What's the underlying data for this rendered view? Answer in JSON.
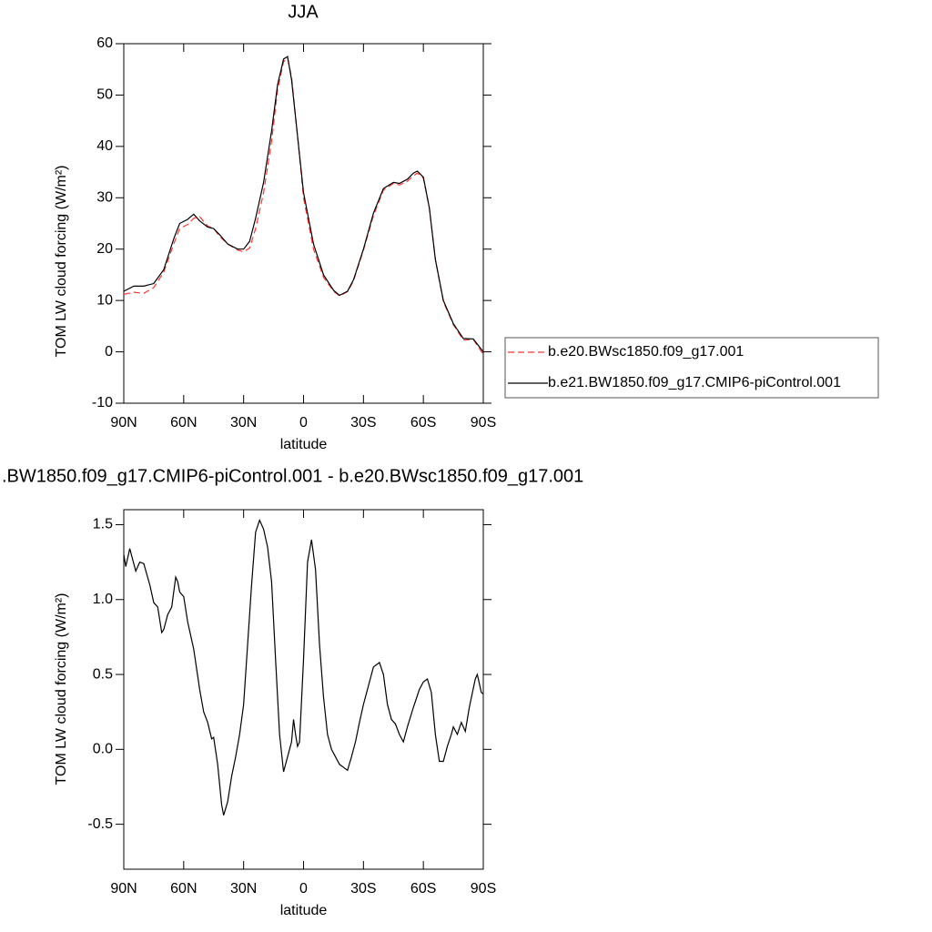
{
  "chart_data": [
    {
      "type": "line",
      "title": "JJA",
      "xlabel": "latitude",
      "ylabel": "TOM LW cloud forcing (W/m²)",
      "x": [
        90,
        85,
        80,
        75,
        70,
        65,
        62,
        58,
        55,
        52,
        48,
        45,
        42,
        38,
        33,
        30,
        27,
        24,
        20,
        16,
        13,
        10,
        8,
        6,
        3,
        0,
        -5,
        -10,
        -15,
        -18,
        -22,
        -25,
        -30,
        -35,
        -40,
        -45,
        -48,
        -52,
        -55,
        -57,
        -60,
        -63,
        -66,
        -70,
        -75,
        -80,
        -85,
        -90
      ],
      "series": [
        {
          "name": "b.e20.BWsc1850.f09_g17.001",
          "color": "#ff3333",
          "dashed": true,
          "values": [
            11.2,
            11.6,
            11.4,
            12.5,
            15.5,
            21,
            24,
            24.8,
            26,
            26.3,
            24.5,
            24,
            22.5,
            21,
            19.8,
            19.5,
            20.2,
            24,
            31,
            41,
            51,
            56.5,
            57.2,
            53.5,
            42,
            30,
            20,
            14.5,
            11.8,
            10.9,
            11.7,
            13.8,
            19.8,
            26.5,
            31.5,
            32.8,
            32.5,
            33.2,
            34.3,
            34.8,
            33.8,
            28,
            18,
            9.8,
            5.3,
            2.3,
            2.4,
            -0.5
          ]
        },
        {
          "name": "b.e21.BW1850.f09_g17.CMIP6-piControl.001",
          "color": "#000000",
          "dashed": false,
          "values": [
            11.8,
            12.8,
            12.8,
            13.3,
            16,
            22,
            25,
            25.8,
            26.8,
            25.5,
            24.3,
            24,
            22.8,
            21,
            20,
            20,
            21.5,
            26,
            33,
            43,
            52,
            57,
            57.5,
            53,
            42,
            31,
            21,
            15,
            12,
            11,
            11.8,
            14,
            20,
            27,
            31.8,
            33,
            32.8,
            33.6,
            34.8,
            35.2,
            34,
            28,
            18,
            10,
            5.5,
            2.6,
            2.5,
            0
          ]
        }
      ],
      "xlim": [
        90,
        -90
      ],
      "xticks": [
        {
          "value": 90,
          "label": "90N"
        },
        {
          "value": 60,
          "label": "60N"
        },
        {
          "value": 30,
          "label": "30N"
        },
        0,
        {
          "value": -30,
          "label": "30S"
        },
        {
          "value": -60,
          "label": "60S"
        },
        {
          "value": -90,
          "label": "90S"
        }
      ],
      "ylim": [
        -10,
        60
      ],
      "yticks": [
        -10,
        0,
        10,
        20,
        30,
        40,
        50,
        60
      ],
      "legend": "right"
    },
    {
      "type": "line",
      "title": ".BW1850.f09_g17.CMIP6-piControl.001 - b.e20.BWsc1850.f09_g17.001",
      "xlabel": "latitude",
      "ylabel": "TOM LW cloud forcing (W/m²)",
      "x": [
        90,
        89,
        87,
        84,
        82,
        80,
        77,
        75,
        73,
        71,
        70,
        68,
        66,
        64,
        63,
        62,
        60,
        58,
        55,
        52,
        50,
        48,
        46,
        45,
        43,
        41,
        40,
        38,
        36,
        34,
        32,
        30,
        28,
        26,
        24,
        22,
        20,
        18,
        16,
        14,
        12,
        10,
        8,
        6,
        5,
        4,
        3,
        2,
        0,
        -2,
        -4,
        -6,
        -8,
        -10,
        -12,
        -14,
        -16,
        -18,
        -20,
        -22,
        -24,
        -26,
        -28,
        -30,
        -33,
        -35,
        -38,
        -40,
        -42,
        -44,
        -46,
        -48,
        -50,
        -52,
        -55,
        -58,
        -60,
        -62,
        -64,
        -66,
        -68,
        -70,
        -72,
        -74,
        -75,
        -77,
        -79,
        -81,
        -83,
        -86,
        -87,
        -89,
        -90
      ],
      "values": [
        1.3,
        1.22,
        1.34,
        1.19,
        1.25,
        1.24,
        1.1,
        0.98,
        0.95,
        0.78,
        0.8,
        0.9,
        0.95,
        1.15,
        1.12,
        1.05,
        1.02,
        0.85,
        0.67,
        0.4,
        0.25,
        0.18,
        0.07,
        0.08,
        -0.1,
        -0.37,
        -0.44,
        -0.35,
        -0.18,
        -0.05,
        0.1,
        0.3,
        0.7,
        1.1,
        1.45,
        1.53,
        1.47,
        1.35,
        1.12,
        0.6,
        0.1,
        -0.15,
        -0.05,
        0.05,
        0.2,
        0.1,
        0.02,
        0.05,
        0.6,
        1.25,
        1.4,
        1.2,
        0.7,
        0.35,
        0.1,
        0,
        -0.05,
        -0.1,
        -0.12,
        -0.14,
        -0.05,
        0.05,
        0.18,
        0.3,
        0.45,
        0.55,
        0.58,
        0.5,
        0.3,
        0.2,
        0.17,
        0.1,
        0.05,
        0.15,
        0.28,
        0.4,
        0.45,
        0.47,
        0.38,
        0.1,
        -0.08,
        -0.08,
        0.02,
        0.1,
        0.15,
        0.1,
        0.18,
        0.12,
        0.28,
        0.47,
        0.5,
        0.38,
        0.37
      ],
      "color": "#000000",
      "xlim": [
        90,
        -90
      ],
      "xticks": [
        {
          "value": 90,
          "label": "90N"
        },
        {
          "value": 60,
          "label": "60N"
        },
        {
          "value": 30,
          "label": "30N"
        },
        0,
        {
          "value": -30,
          "label": "30S"
        },
        {
          "value": -60,
          "label": "60S"
        },
        {
          "value": -90,
          "label": "90S"
        }
      ],
      "ylim": [
        -0.8,
        1.6
      ],
      "yticks": [
        -0.5,
        {
          "value": 0,
          "label": "0.0"
        },
        0.5,
        {
          "value": 1,
          "label": "1.0"
        },
        1.5
      ]
    }
  ]
}
